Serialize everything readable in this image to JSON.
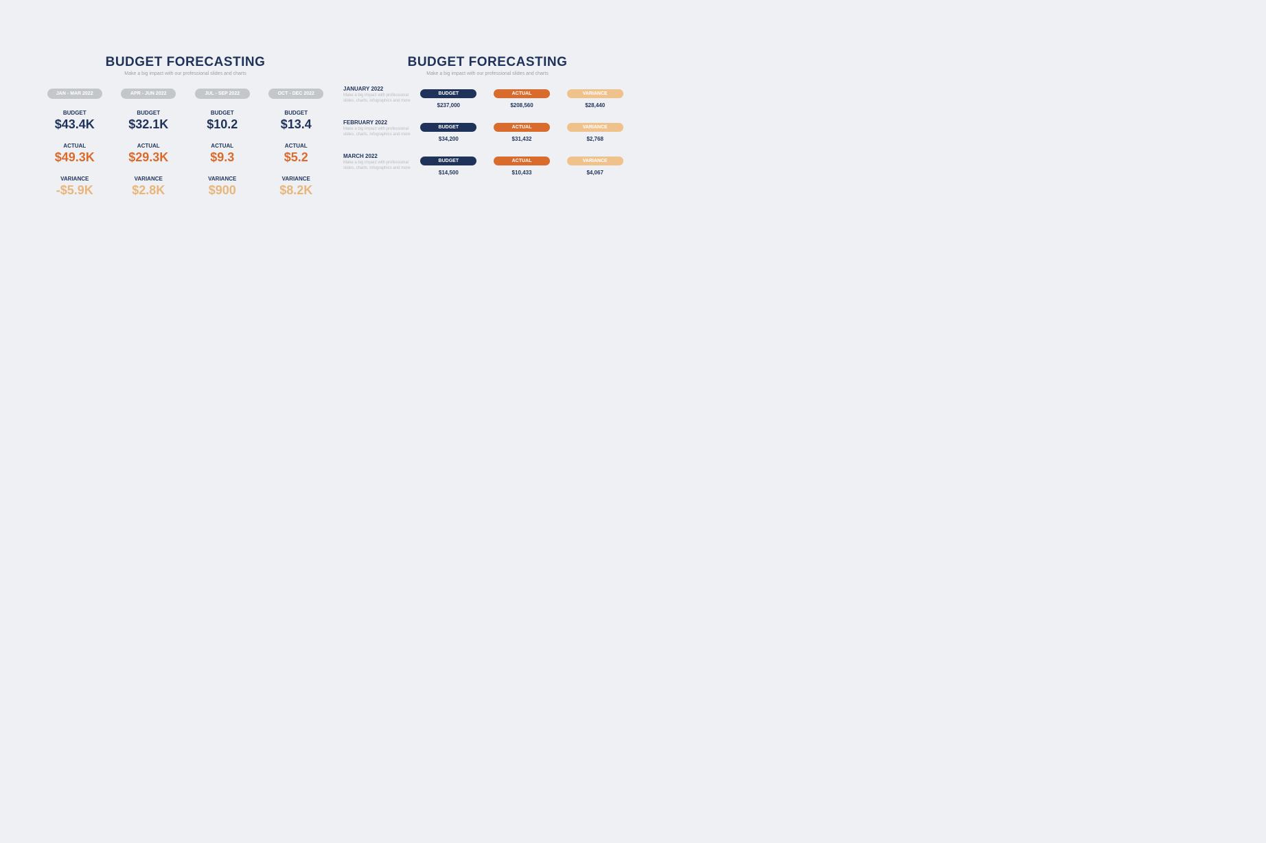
{
  "colors": {
    "page_bg": "#eff0f3",
    "navy": "#1f335a",
    "orange": "#d96b2d",
    "peach": "#e9b57a",
    "peach_fill": "#efc18b",
    "grey_pill": "#c3c6cb",
    "grey_text": "#9aa0a9",
    "light_grey_text": "#b7bbc2",
    "white": "#ffffff"
  },
  "slideA": {
    "title": "BUDGET FORECASTING",
    "subtitle": "Make a big impact with our professional slides and charts",
    "labels": {
      "budget": "BUDGET",
      "actual": "ACTUAL",
      "variance": "VARIANCE"
    },
    "quarters": [
      {
        "range": "JAN - MAR 2022",
        "budget": "$43.4K",
        "actual": "$49.3K",
        "variance": "-$5.9K"
      },
      {
        "range": "APR - JUN 2022",
        "budget": "$32.1K",
        "actual": "$29.3K",
        "variance": "$2.8K"
      },
      {
        "range": "JUL - SEP 2022",
        "budget": "$10.2",
        "actual": "$9.3",
        "variance": "$900"
      },
      {
        "range": "OCT - DEC 2022",
        "budget": "$13.4",
        "actual": "$5.2",
        "variance": "$8.2K"
      }
    ]
  },
  "slideB": {
    "title": "BUDGET FORECASTING",
    "subtitle": "Make a big impact with our professional slides and charts",
    "headers": {
      "budget": "BUDGET",
      "actual": "ACTUAL",
      "variance": "VARIANCE"
    },
    "row_desc": "Make a big impact with professional slides, charts, infographics and more",
    "months": [
      {
        "name": "JANUARY 2022",
        "budget": "$237,000",
        "actual": "$208,560",
        "variance": "$28,440"
      },
      {
        "name": "FEBRUARY 2022",
        "budget": "$34,200",
        "actual": "$31,432",
        "variance": "$2,768"
      },
      {
        "name": "MARCH 2022",
        "budget": "$14,500",
        "actual": "$10,433",
        "variance": "$4,067"
      }
    ]
  }
}
